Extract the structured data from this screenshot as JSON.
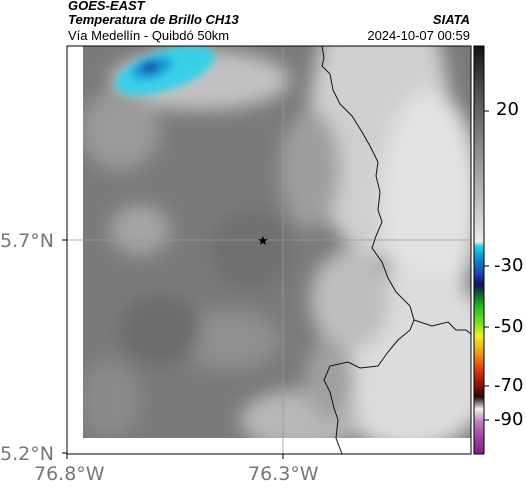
{
  "header": {
    "satellite": "GOES-EAST",
    "product": "Temperatura de Brillo CH13",
    "region": "Vía Medellín - Quibdó 50km",
    "agency": "SIATA",
    "timestamp": "2024-10-07 00:59"
  },
  "map": {
    "lat_ticks": [
      "5.7°N",
      "5.2°N"
    ],
    "lon_ticks": [
      "76.8°W",
      "76.3°W"
    ],
    "marker_icon": "star-icon"
  },
  "colorbar": {
    "ticks": [
      "20",
      "-30",
      "-50",
      "-70",
      "-90"
    ]
  }
}
